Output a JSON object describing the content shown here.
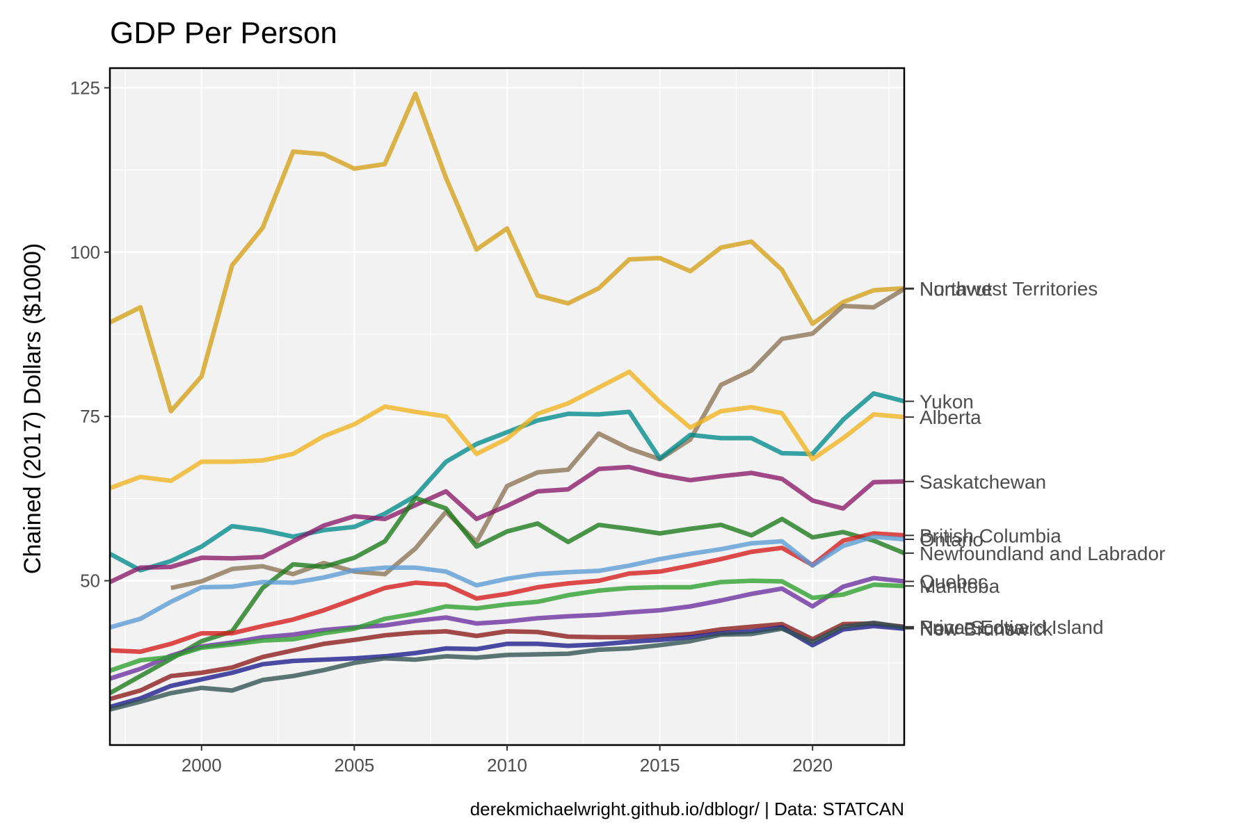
{
  "chart_data": {
    "type": "line",
    "title": "GDP Per Person",
    "ylabel": "Chained (2017) Dollars ($1000)",
    "xlabel": "",
    "caption": "derekmichaelwright.github.io/dblogr/ | Data: STATCAN",
    "xlim": [
      1997,
      2023
    ],
    "ylim": [
      25,
      128
    ],
    "x_ticks": [
      2000,
      2005,
      2010,
      2015,
      2020
    ],
    "y_ticks": [
      50,
      75,
      100,
      125
    ],
    "background": "#f2f2f2",
    "grid": true,
    "legend": "direct-labels-right",
    "series": [
      {
        "name": "Northwest Territories",
        "color": "#d4a017",
        "x": [
          1997,
          1998,
          1999,
          2000,
          2001,
          2002,
          2003,
          2004,
          2005,
          2006,
          2007,
          2008,
          2009,
          2010,
          2011,
          2012,
          2013,
          2014,
          2015,
          2016,
          2017,
          2018,
          2019,
          2020,
          2021,
          2022,
          2023
        ],
        "y": [
          89.3,
          91.6,
          75.8,
          81.1,
          98.0,
          103.7,
          115.3,
          114.9,
          112.7,
          113.4,
          124.1,
          111.3,
          100.4,
          103.6,
          93.4,
          92.2,
          94.5,
          98.9,
          99.1,
          97.1,
          100.7,
          101.6,
          97.3,
          89.1,
          92.4,
          94.2,
          94.5
        ]
      },
      {
        "name": "Nunavut",
        "color": "#8b7355",
        "x": [
          1999,
          2000,
          2001,
          2002,
          2003,
          2004,
          2005,
          2006,
          2007,
          2008,
          2009,
          2010,
          2011,
          2012,
          2013,
          2014,
          2015,
          2016,
          2017,
          2018,
          2019,
          2020,
          2021,
          2022,
          2023
        ],
        "y": [
          48.9,
          49.9,
          51.8,
          52.2,
          51.0,
          52.7,
          51.4,
          51.0,
          54.9,
          60.5,
          55.9,
          64.4,
          66.5,
          66.9,
          72.4,
          70.1,
          68.5,
          71.5,
          79.8,
          82.0,
          86.8,
          87.6,
          91.8,
          91.6,
          94.4
        ]
      },
      {
        "name": "Yukon",
        "color": "#008b8b",
        "x": [
          1997,
          1998,
          1999,
          2000,
          2001,
          2002,
          2003,
          2004,
          2005,
          2006,
          2007,
          2008,
          2009,
          2010,
          2011,
          2012,
          2013,
          2014,
          2015,
          2016,
          2017,
          2018,
          2019,
          2020,
          2021,
          2022,
          2023
        ],
        "y": [
          54.1,
          51.6,
          53.0,
          55.2,
          58.3,
          57.7,
          56.7,
          57.7,
          58.2,
          60.2,
          62.9,
          68.1,
          70.8,
          72.6,
          74.4,
          75.4,
          75.3,
          75.7,
          68.6,
          72.2,
          71.7,
          71.7,
          69.4,
          69.3,
          74.5,
          78.5,
          77.3
        ]
      },
      {
        "name": "Alberta",
        "color": "#f0b51f",
        "x": [
          1997,
          1998,
          1999,
          2000,
          2001,
          2002,
          2003,
          2004,
          2005,
          2006,
          2007,
          2008,
          2009,
          2010,
          2011,
          2012,
          2013,
          2014,
          2015,
          2016,
          2017,
          2018,
          2019,
          2020,
          2021,
          2022,
          2023
        ],
        "y": [
          64.1,
          65.8,
          65.2,
          68.1,
          68.1,
          68.3,
          69.3,
          72.0,
          73.8,
          76.5,
          75.7,
          75.0,
          69.3,
          71.6,
          75.4,
          77.0,
          79.4,
          81.8,
          77.2,
          73.3,
          75.8,
          76.4,
          75.5,
          68.5,
          71.7,
          75.3,
          74.9
        ]
      },
      {
        "name": "Saskatchewan",
        "color": "#8b1a68",
        "x": [
          1997,
          1998,
          1999,
          2000,
          2001,
          2002,
          2003,
          2004,
          2005,
          2006,
          2007,
          2008,
          2009,
          2010,
          2011,
          2012,
          2013,
          2014,
          2015,
          2016,
          2017,
          2018,
          2019,
          2020,
          2021,
          2022,
          2023
        ],
        "y": [
          49.8,
          52.0,
          52.1,
          53.5,
          53.4,
          53.6,
          56.0,
          58.4,
          59.8,
          59.4,
          61.5,
          63.6,
          59.4,
          61.4,
          63.6,
          63.9,
          67.0,
          67.3,
          66.1,
          65.3,
          65.9,
          66.4,
          65.5,
          62.2,
          61.0,
          65.0,
          65.1
        ]
      },
      {
        "name": "Newfoundland and Labrador",
        "color": "#1a7a1a",
        "x": [
          1997,
          1998,
          1999,
          2000,
          2001,
          2002,
          2003,
          2004,
          2005,
          2006,
          2007,
          2008,
          2009,
          2010,
          2011,
          2012,
          2013,
          2014,
          2015,
          2016,
          2017,
          2018,
          2019,
          2020,
          2021,
          2022,
          2023
        ],
        "y": [
          32.9,
          35.5,
          38.1,
          40.8,
          42.3,
          48.9,
          52.5,
          52.1,
          53.5,
          56.0,
          62.6,
          61.0,
          55.2,
          57.5,
          58.7,
          55.9,
          58.5,
          57.9,
          57.2,
          57.9,
          58.5,
          56.9,
          59.4,
          56.6,
          57.4,
          56.1,
          54.2
        ]
      },
      {
        "name": "British Columbia",
        "color": "#d61a1a",
        "x": [
          1997,
          1998,
          1999,
          2000,
          2001,
          2002,
          2003,
          2004,
          2005,
          2006,
          2007,
          2008,
          2009,
          2010,
          2011,
          2012,
          2013,
          2014,
          2015,
          2016,
          2017,
          2018,
          2019,
          2020,
          2021,
          2022,
          2023
        ],
        "y": [
          39.4,
          39.2,
          40.4,
          42.0,
          42.0,
          43.1,
          44.1,
          45.5,
          47.2,
          48.9,
          49.7,
          49.4,
          47.3,
          48.0,
          49.0,
          49.6,
          50.0,
          51.1,
          51.4,
          52.3,
          53.3,
          54.4,
          55.0,
          52.4,
          56.1,
          57.2,
          56.9
        ]
      },
      {
        "name": "Ontario",
        "color": "#5b9bd5",
        "x": [
          1997,
          1998,
          1999,
          2000,
          2001,
          2002,
          2003,
          2004,
          2005,
          2006,
          2007,
          2008,
          2009,
          2010,
          2011,
          2012,
          2013,
          2014,
          2015,
          2016,
          2017,
          2018,
          2019,
          2020,
          2021,
          2022,
          2023
        ],
        "y": [
          42.9,
          44.2,
          46.8,
          49.0,
          49.1,
          49.8,
          49.7,
          50.5,
          51.6,
          52.0,
          52.0,
          51.4,
          49.3,
          50.3,
          51.0,
          51.3,
          51.5,
          52.3,
          53.3,
          54.1,
          54.8,
          55.7,
          56.0,
          52.3,
          55.3,
          56.7,
          56.3
        ]
      },
      {
        "name": "Quebec",
        "color": "#6a2e9e",
        "x": [
          1997,
          1998,
          1999,
          2000,
          2001,
          2002,
          2003,
          2004,
          2005,
          2006,
          2007,
          2008,
          2009,
          2010,
          2011,
          2012,
          2013,
          2014,
          2015,
          2016,
          2017,
          2018,
          2019,
          2020,
          2021,
          2022,
          2023
        ],
        "y": [
          35.1,
          36.6,
          38.6,
          40.0,
          40.6,
          41.4,
          41.8,
          42.5,
          42.9,
          43.2,
          43.9,
          44.4,
          43.5,
          43.8,
          44.3,
          44.6,
          44.8,
          45.2,
          45.5,
          46.1,
          47.0,
          48.0,
          48.8,
          46.1,
          49.1,
          50.4,
          49.9
        ]
      },
      {
        "name": "Manitoba",
        "color": "#2ca02c",
        "x": [
          1997,
          1998,
          1999,
          2000,
          2001,
          2002,
          2003,
          2004,
          2005,
          2006,
          2007,
          2008,
          2009,
          2010,
          2011,
          2012,
          2013,
          2014,
          2015,
          2016,
          2017,
          2018,
          2019,
          2020,
          2021,
          2022,
          2023
        ],
        "y": [
          36.3,
          37.9,
          38.4,
          39.8,
          40.3,
          40.9,
          41.1,
          42.0,
          42.7,
          44.2,
          45.0,
          46.1,
          45.8,
          46.4,
          46.8,
          47.8,
          48.5,
          48.9,
          49.0,
          49.0,
          49.8,
          50.0,
          49.9,
          47.4,
          47.9,
          49.4,
          49.2
        ]
      },
      {
        "name": "Prince Edward Island",
        "color": "#8b1a1a",
        "x": [
          1997,
          1998,
          1999,
          2000,
          2001,
          2002,
          2003,
          2004,
          2005,
          2006,
          2007,
          2008,
          2009,
          2010,
          2011,
          2012,
          2013,
          2014,
          2015,
          2016,
          2017,
          2018,
          2019,
          2020,
          2021,
          2022,
          2023
        ],
        "y": [
          32.0,
          33.3,
          35.5,
          36.0,
          36.8,
          38.4,
          39.4,
          40.4,
          41.0,
          41.7,
          42.1,
          42.3,
          41.6,
          42.3,
          42.2,
          41.5,
          41.4,
          41.4,
          41.6,
          41.9,
          42.6,
          43.0,
          43.4,
          41.1,
          43.4,
          43.5,
          43.0
        ]
      },
      {
        "name": "New Brunswick",
        "color": "#1a1a8b",
        "x": [
          1997,
          1998,
          1999,
          2000,
          2001,
          2002,
          2003,
          2004,
          2005,
          2006,
          2007,
          2008,
          2009,
          2010,
          2011,
          2012,
          2013,
          2014,
          2015,
          2016,
          2017,
          2018,
          2019,
          2020,
          2021,
          2022,
          2023
        ],
        "y": [
          30.8,
          32.1,
          34.0,
          35.0,
          36.0,
          37.3,
          37.8,
          38.0,
          38.2,
          38.5,
          39.0,
          39.7,
          39.6,
          40.4,
          40.4,
          40.1,
          40.3,
          40.7,
          41.0,
          41.4,
          42.0,
          42.3,
          42.9,
          40.2,
          42.6,
          43.1,
          42.7
        ]
      },
      {
        "name": "Nova Scotia",
        "color": "#2f4f4f",
        "x": [
          1997,
          1998,
          1999,
          2000,
          2001,
          2002,
          2003,
          2004,
          2005,
          2006,
          2007,
          2008,
          2009,
          2010,
          2011,
          2012,
          2013,
          2014,
          2015,
          2016,
          2017,
          2018,
          2019,
          2020,
          2021,
          2022,
          2023
        ],
        "y": [
          30.4,
          31.6,
          32.9,
          33.7,
          33.3,
          34.9,
          35.5,
          36.4,
          37.5,
          38.2,
          38.0,
          38.5,
          38.3,
          38.7,
          38.8,
          38.9,
          39.5,
          39.7,
          40.2,
          40.8,
          41.8,
          41.9,
          42.7,
          40.7,
          43.0,
          43.6,
          42.9
        ]
      }
    ],
    "end_labels": [
      {
        "text": "Northwest Territories",
        "y": 94.5
      },
      {
        "text": "Nunavut",
        "y": 94.4
      },
      {
        "text": "Yukon",
        "y": 77.3
      },
      {
        "text": "Alberta",
        "y": 74.9
      },
      {
        "text": "Saskatchewan",
        "y": 65.1
      },
      {
        "text": "British Columbia",
        "y": 56.9
      },
      {
        "text": "Ontario",
        "y": 56.3
      },
      {
        "text": "Newfoundland and Labrador",
        "y": 54.2
      },
      {
        "text": "Quebec",
        "y": 49.9
      },
      {
        "text": "Manitoba",
        "y": 49.2
      },
      {
        "text": "Prince Edward Island",
        "y": 43.0
      },
      {
        "text": "New Brunswick",
        "y": 42.7
      },
      {
        "text": "Nova Scotia",
        "y": 42.9
      }
    ]
  }
}
